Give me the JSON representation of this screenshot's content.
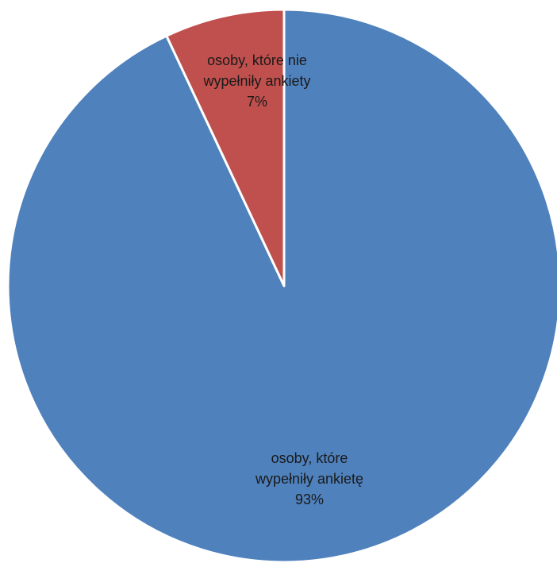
{
  "chart_data": {
    "type": "pie",
    "slices": [
      {
        "label_lines": [
          "osoby, które",
          "wypełniły ankietę"
        ],
        "value": 93,
        "value_label": "93%",
        "color": "#4F81BD"
      },
      {
        "label_lines": [
          "osoby, które nie",
          "wypełniły ankiety"
        ],
        "value": 7,
        "value_label": "7%",
        "color": "#C0504D"
      }
    ],
    "start_angle": "12 o'clock",
    "direction": "clockwise",
    "legend": "none",
    "data_labels": "category name and percentage inside slices"
  }
}
